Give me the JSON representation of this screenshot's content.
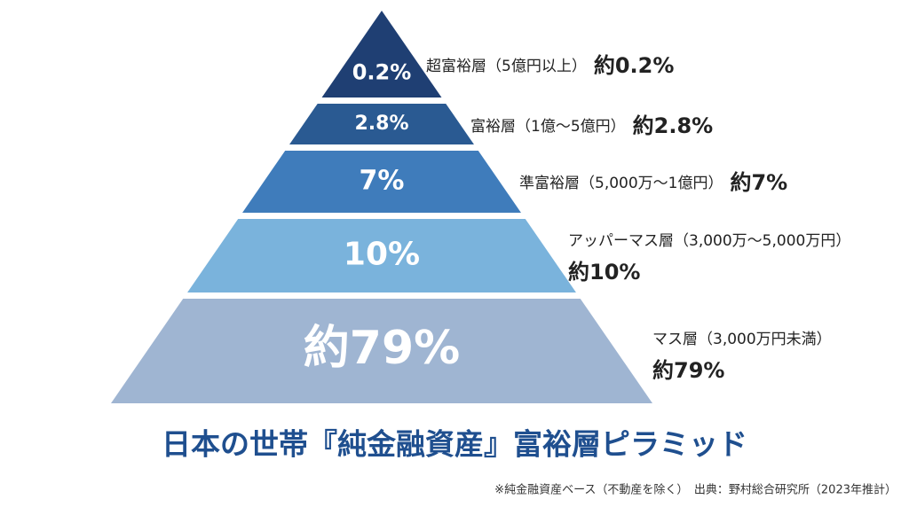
{
  "title": "日本の世帯『純金融資産』富裕層ピラミッド",
  "footnote": "※純金融資産ベース（不動産を除く）　出典：野村総合研究所（2023年推計）",
  "layers": [
    {
      "inner": "0.2%",
      "name": "超富裕層（5億円以上）",
      "value": "約0.2%"
    },
    {
      "inner": "2.8%",
      "name": "富裕層（1億〜5億円）",
      "value": "約2.8%"
    },
    {
      "inner": "7%",
      "name": "準富裕層（5,000万〜1億円）",
      "value": "約7%"
    },
    {
      "inner": "10%",
      "name": "アッパーマス層（3,000万〜5,000万円）",
      "value": "約10%"
    },
    {
      "inner": "約79%",
      "name": "マス層（3,000万円未満）",
      "value": "約79%"
    }
  ]
}
